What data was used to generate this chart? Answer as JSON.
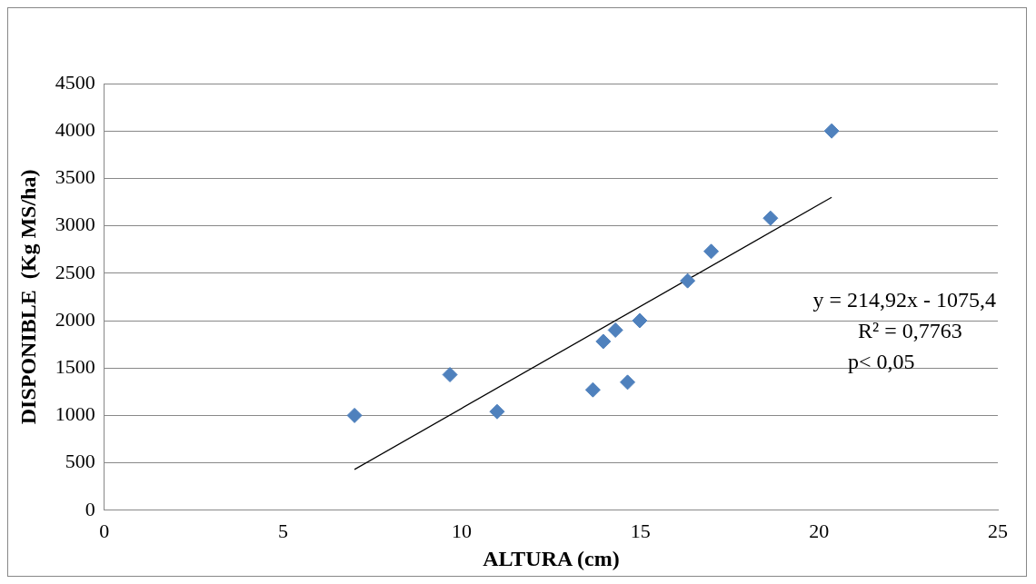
{
  "chart_data": {
    "type": "scatter",
    "xlabel": "ALTURA (cm)",
    "ylabel": "DISPONIBLE  (Kg MS/ha)",
    "x": [
      7.0,
      9.67,
      10.99,
      13.67,
      13.96,
      14.3,
      14.64,
      14.98,
      16.32,
      16.98,
      18.64,
      20.35
    ],
    "series": [
      {
        "type": "scatter",
        "color": "#4f81bd",
        "marker": "diamond",
        "values": [
          1000,
          1430,
          1040,
          1270,
          1780,
          1900,
          1350,
          2000,
          2420,
          2730,
          3080,
          4000
        ]
      },
      {
        "type": "line",
        "color": "#000000",
        "marker": "none",
        "line_style": "solid",
        "x": [
          7.0,
          20.35
        ],
        "values": [
          430,
          3300
        ]
      }
    ],
    "xlim": [
      0,
      25
    ],
    "xticks": [
      0,
      5,
      10,
      15,
      20,
      25
    ],
    "ylim": [
      0,
      4500
    ],
    "yticks": [
      0,
      500,
      1000,
      1500,
      2000,
      2500,
      3000,
      3500,
      4000,
      4500
    ],
    "grid": "y",
    "legend": false,
    "annotations": [
      "y = 214,92x - 1075,4",
      "R² = 0,7763",
      "p< 0,05"
    ]
  }
}
